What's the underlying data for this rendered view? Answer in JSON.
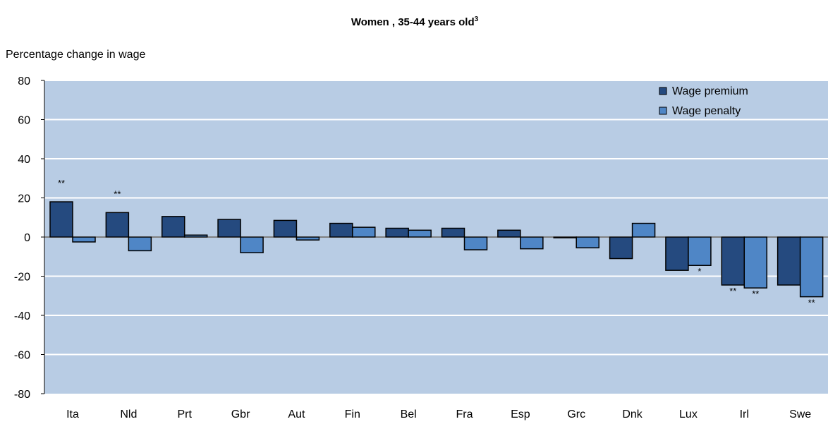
{
  "chart_data": {
    "type": "bar",
    "title": "Women , 35-44 years old",
    "title_superscript": "3",
    "ylabel": "Percentage change in  wage",
    "xlabel": "",
    "ylim": [
      -80,
      80
    ],
    "yticks": [
      80,
      60,
      40,
      20,
      0,
      -20,
      -40,
      -60,
      -80
    ],
    "categories": [
      "Ita",
      "Nld",
      "Prt",
      "Gbr",
      "Aut",
      "Fin",
      "Bel",
      "Fra",
      "Esp",
      "Grc",
      "Dnk",
      "Lux",
      "Irl",
      "Swe"
    ],
    "series": [
      {
        "name": "Wage premium",
        "color": "#254a7f",
        "values": [
          18,
          12.5,
          10.5,
          9,
          8.5,
          7,
          4.5,
          4.5,
          3.5,
          0,
          -11,
          -17,
          -24.5,
          -24.5
        ],
        "significance": [
          "**",
          "**",
          "",
          "",
          "",
          "",
          "",
          "",
          "",
          "",
          "",
          "",
          "**",
          ""
        ]
      },
      {
        "name": "Wage penalty",
        "color": "#4f86c6",
        "values": [
          -2.5,
          -7,
          1,
          -8,
          -1.5,
          5,
          3.5,
          -6.5,
          -6,
          -5.5,
          7,
          -14.5,
          -26,
          -30.5
        ],
        "significance": [
          "",
          "",
          "",
          "",
          "",
          "",
          "",
          "",
          "",
          "",
          "",
          "*",
          "**",
          "**"
        ]
      }
    ],
    "grid": true,
    "legend_position": "top-right",
    "plot_background": "#b8cce4"
  }
}
